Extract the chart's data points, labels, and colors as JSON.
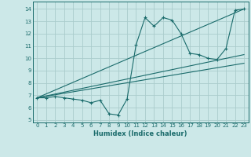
{
  "xlabel": "Humidex (Indice chaleur)",
  "xlim": [
    -0.5,
    23.5
  ],
  "ylim": [
    4.8,
    14.6
  ],
  "yticks": [
    5,
    6,
    7,
    8,
    9,
    10,
    11,
    12,
    13,
    14
  ],
  "xticks": [
    0,
    1,
    2,
    3,
    4,
    5,
    6,
    7,
    8,
    9,
    10,
    11,
    12,
    13,
    14,
    15,
    16,
    17,
    18,
    19,
    20,
    21,
    22,
    23
  ],
  "background_color": "#cce8e8",
  "grid_color": "#aacccc",
  "line_color": "#1a6b6b",
  "series": {
    "main_curve": {
      "x": [
        0,
        1,
        2,
        3,
        4,
        5,
        6,
        7,
        8,
        9,
        10,
        11,
        12,
        13,
        14,
        15,
        16,
        17,
        18,
        19,
        20,
        21,
        22,
        23
      ],
      "y": [
        6.8,
        6.8,
        6.9,
        6.8,
        6.7,
        6.6,
        6.4,
        6.6,
        5.5,
        5.4,
        6.7,
        11.1,
        13.3,
        12.6,
        13.3,
        13.1,
        12.0,
        10.4,
        10.3,
        10.0,
        9.9,
        10.8,
        13.9,
        14.0
      ]
    },
    "regression1": {
      "x": [
        0,
        23
      ],
      "y": [
        6.8,
        10.3
      ]
    },
    "regression2": {
      "x": [
        0,
        23
      ],
      "y": [
        6.8,
        9.6
      ]
    },
    "regression3": {
      "x": [
        0,
        23
      ],
      "y": [
        6.8,
        14.0
      ]
    }
  }
}
